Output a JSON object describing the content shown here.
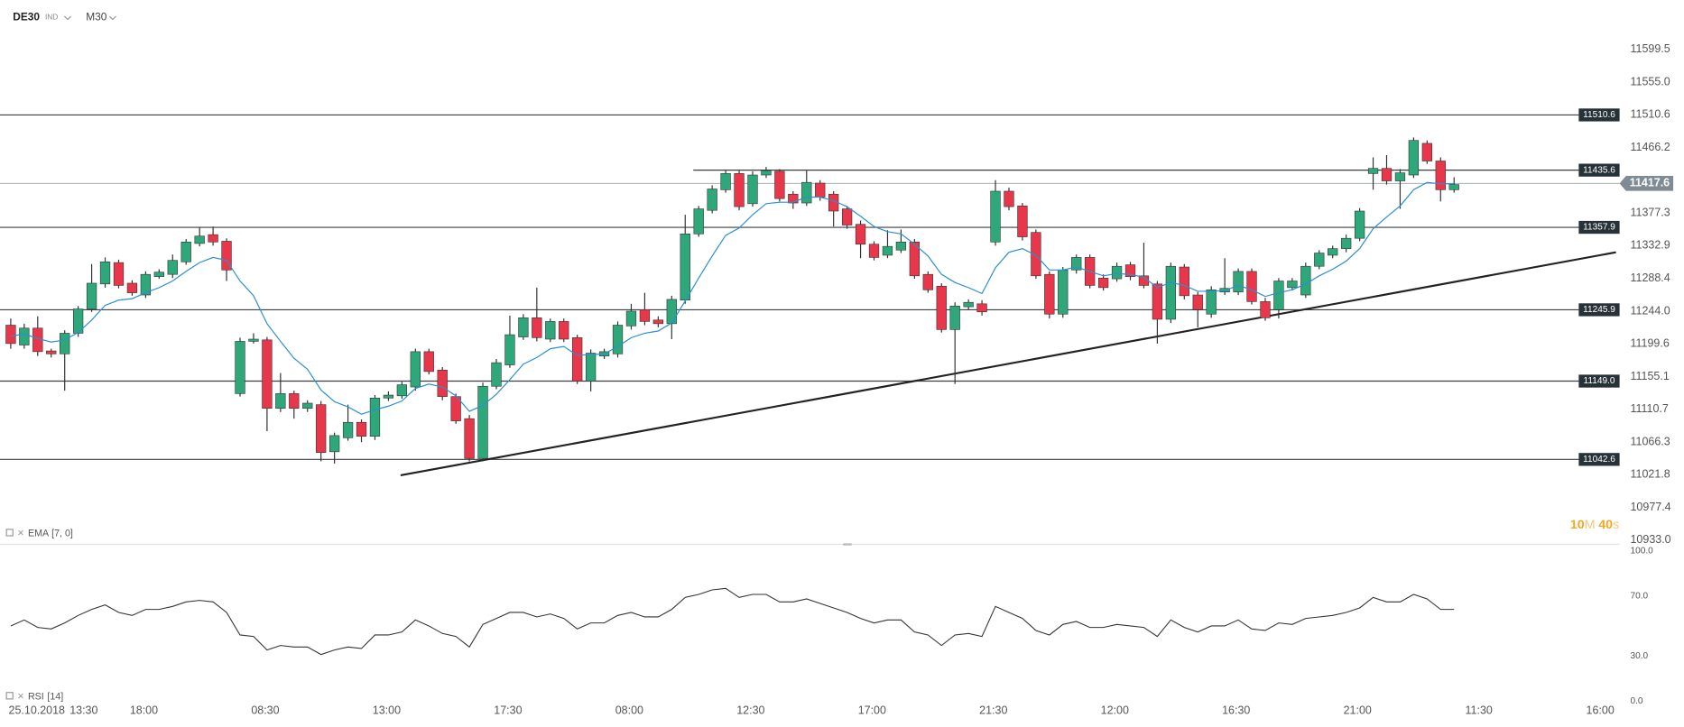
{
  "chart_data": {
    "type": "candlestick",
    "symbol": "DE30",
    "symbol_type": "IND",
    "timeframe": "M30",
    "up_color": "#2ea77a",
    "down_color": "#e8364a",
    "ylim": [
      10930.1,
      11622.8
    ],
    "yticks": [
      11599.5,
      {
        "value": 11555,
        "label": "11555.0"
      },
      11510.6,
      11466.2,
      11377.3,
      11332.9,
      11288.4,
      {
        "value": 11244,
        "label": "11244.0"
      },
      11199.6,
      11155.1,
      11110.7,
      11066.3,
      11021.8,
      10977.4,
      {
        "value": 10933,
        "label": "10933.0"
      }
    ],
    "levels": [
      11510.6,
      11435.6,
      11357.9,
      11245.9,
      {
        "value": 11149,
        "label": "11149.0"
      },
      11042.6
    ],
    "current_price": 11417.6,
    "trend_line": [
      11021,
      11324
    ],
    "date_label": "25.10.2018",
    "x_ticks": [
      "13:30",
      "18:00",
      "08:30",
      "13:00",
      "17:30",
      "08:00",
      "12:30",
      "17:00",
      "21:30",
      "12:00",
      "16:30",
      "21:00",
      "11:30",
      "16:00"
    ],
    "countdown": [
      "10",
      "M",
      "40",
      "s"
    ],
    "open": [
      11225,
      11198,
      11221,
      11190,
      11186,
      11214,
      11247,
      11281,
      11310,
      11282,
      11266,
      11291,
      11294,
      11311,
      11336,
      11348,
      11339,
      11132,
      11203,
      11205,
      11112,
      11132,
      11112,
      11117,
      11053,
      11072,
      11093,
      11074,
      11126,
      11129,
      11141,
      11189,
      11164,
      11128,
      11098,
      11044,
      11142,
      11171,
      11209,
      11235,
      11206,
      11230,
      11208,
      11149,
      11183,
      11186,
      11224,
      11246,
      11232,
      11227,
      11259,
      11349,
      11381,
      11409,
      11431,
      11390,
      11429,
      11434,
      11403,
      11391,
      11418,
      11403,
      11383,
      11362,
      11335,
      11320,
      11327,
      11338,
      11294,
      11278,
      11219,
      11250,
      11254,
      11338,
      11407,
      11387,
      11351,
      11294,
      11240,
      11300,
      11317,
      11289,
      11288,
      11307,
      11292,
      11281,
      11233,
      11304,
      11266,
      11240,
      11270,
      11270,
      11298,
      11257,
      11246,
      11276,
      11266,
      11305,
      11320,
      11329,
      11343,
      11431,
      11438,
      11421,
      11429,
      11472,
      11448,
      11409
    ],
    "high": [
      11234,
      11227,
      11237,
      11193,
      11218,
      11251,
      11308,
      11317,
      11314,
      11286,
      11298,
      11301,
      11321,
      11342,
      11358,
      11359,
      11343,
      11208,
      11214,
      11209,
      11160,
      11136,
      11123,
      11122,
      11079,
      11117,
      11097,
      11130,
      11135,
      11148,
      11193,
      11193,
      11168,
      11132,
      11103,
      11147,
      11179,
      11238,
      11240,
      11276,
      11234,
      11234,
      11212,
      11192,
      11193,
      11230,
      11254,
      11269,
      11237,
      11265,
      11375,
      11387,
      11415,
      11435,
      11435,
      11434,
      11440,
      11437,
      11407,
      11435,
      11422,
      11407,
      11387,
      11367,
      11339,
      11354,
      11355,
      11342,
      11298,
      11282,
      11256,
      11260,
      11259,
      11422,
      11412,
      11391,
      11355,
      11298,
      11304,
      11321,
      11321,
      11294,
      11310,
      11311,
      11337,
      11285,
      11310,
      11308,
      11270,
      11278,
      11316,
      11302,
      11302,
      11262,
      11289,
      11289,
      11310,
      11327,
      11333,
      11348,
      11384,
      11453,
      11456,
      11437,
      11480,
      11476,
      11453,
      11426
    ],
    "low": [
      11193,
      11193,
      11183,
      11181,
      11136,
      11209,
      11243,
      11276,
      11275,
      11265,
      11262,
      11288,
      11289,
      11307,
      11332,
      11333,
      11285,
      11128,
      11200,
      11081,
      11107,
      11098,
      11107,
      11040,
      11037,
      11068,
      11066,
      11069,
      11122,
      11125,
      11136,
      11158,
      11123,
      11091,
      11040,
      11040,
      11138,
      11167,
      11205,
      11203,
      11202,
      11202,
      11145,
      11135,
      11179,
      11181,
      11219,
      11225,
      11222,
      11206,
      11254,
      11345,
      11377,
      11405,
      11381,
      11386,
      11425,
      11393,
      11383,
      11387,
      11394,
      11359,
      11356,
      11316,
      11313,
      11316,
      11323,
      11288,
      11269,
      11215,
      11145,
      11246,
      11238,
      11333,
      11381,
      11340,
      11288,
      11234,
      11235,
      11295,
      11275,
      11272,
      11284,
      11286,
      11275,
      11200,
      11228,
      11260,
      11222,
      11235,
      11266,
      11266,
      11253,
      11231,
      11234,
      11272,
      11262,
      11301,
      11316,
      11324,
      11339,
      11409,
      11416,
      11383,
      11425,
      11444,
      11393,
      11405
    ],
    "close": [
      11200,
      11221,
      11189,
      11186,
      11214,
      11247,
      11282,
      11311,
      11279,
      11269,
      11294,
      11297,
      11313,
      11338,
      11346,
      11338,
      11300,
      11203,
      11206,
      11112,
      11132,
      11112,
      11119,
      11052,
      11075,
      11093,
      11074,
      11126,
      11130,
      11144,
      11189,
      11162,
      11128,
      11095,
      11044,
      11142,
      11174,
      11212,
      11235,
      11208,
      11230,
      11206,
      11149,
      11187,
      11189,
      11225,
      11244,
      11230,
      11227,
      11260,
      11349,
      11383,
      11410,
      11431,
      11386,
      11429,
      11435,
      11397,
      11391,
      11419,
      11399,
      11380,
      11361,
      11335,
      11317,
      11332,
      11338,
      11292,
      11273,
      11219,
      11251,
      11256,
      11243,
      11407,
      11386,
      11345,
      11292,
      11240,
      11300,
      11317,
      11279,
      11276,
      11305,
      11291,
      11279,
      11233,
      11305,
      11265,
      11246,
      11273,
      11275,
      11298,
      11257,
      11235,
      11285,
      11285,
      11305,
      11323,
      11329,
      11343,
      11380,
      11438,
      11421,
      11432,
      11476,
      11448,
      11409,
      11416
    ],
    "ema": {
      "name": "EMA",
      "params": "[7, 0]",
      "color": "#2b8fd1",
      "values": [
        11210,
        11213,
        11207,
        11202,
        11205,
        11215,
        11232,
        11252,
        11259,
        11261,
        11269,
        11276,
        11285,
        11298,
        11310,
        11317,
        11313,
        11285,
        11265,
        11227,
        11203,
        11180,
        11165,
        11137,
        11121,
        11114,
        11104,
        11110,
        11115,
        11122,
        11139,
        11145,
        11141,
        11129,
        11108,
        11116,
        11131,
        11151,
        11172,
        11181,
        11193,
        11196,
        11184,
        11185,
        11186,
        11196,
        11208,
        11214,
        11217,
        11228,
        11258,
        11289,
        11319,
        11347,
        11357,
        11375,
        11390,
        11392,
        11392,
        11399,
        11399,
        11394,
        11386,
        11373,
        11359,
        11352,
        11349,
        11335,
        11319,
        11294,
        11283,
        11276,
        11268,
        11303,
        11324,
        11329,
        11320,
        11300,
        11300,
        11304,
        11298,
        11292,
        11295,
        11294,
        11290,
        11276,
        11283,
        11279,
        11271,
        11271,
        11272,
        11279,
        11273,
        11264,
        11269,
        11273,
        11281,
        11292,
        11301,
        11312,
        11329,
        11356,
        11372,
        11387,
        11409,
        11419,
        11417,
        11417
      ]
    },
    "rsi": {
      "name": "RSI",
      "params": "[14]",
      "color": "#333333",
      "ylim": [
        0,
        100
      ],
      "yticks": [
        {
          "value": 100,
          "label": "100.0"
        },
        {
          "value": 70,
          "label": "70.0"
        },
        {
          "value": 30,
          "label": "30.0"
        },
        {
          "value": 0,
          "label": "0.0"
        }
      ],
      "values": [
        50,
        54,
        49,
        48,
        52,
        57,
        61,
        64,
        59,
        57,
        61,
        61,
        63,
        66,
        67,
        66,
        59,
        44,
        43,
        34,
        37,
        36,
        36,
        31,
        34,
        36,
        35,
        44,
        44,
        46,
        54,
        50,
        45,
        43,
        36,
        51,
        55,
        59,
        59,
        56,
        58,
        55,
        48,
        52,
        52,
        57,
        59,
        56,
        56,
        61,
        69,
        71,
        74,
        75,
        69,
        71,
        71,
        66,
        66,
        68,
        65,
        62,
        59,
        55,
        52,
        54,
        54,
        46,
        44,
        37,
        44,
        45,
        43,
        63,
        59,
        55,
        47,
        44,
        51,
        53,
        49,
        49,
        51,
        50,
        49,
        43,
        54,
        49,
        46,
        50,
        50,
        54,
        48,
        47,
        52,
        51,
        55,
        56,
        57,
        59,
        62,
        69,
        66,
        66,
        71,
        68,
        61,
        61
      ]
    }
  }
}
